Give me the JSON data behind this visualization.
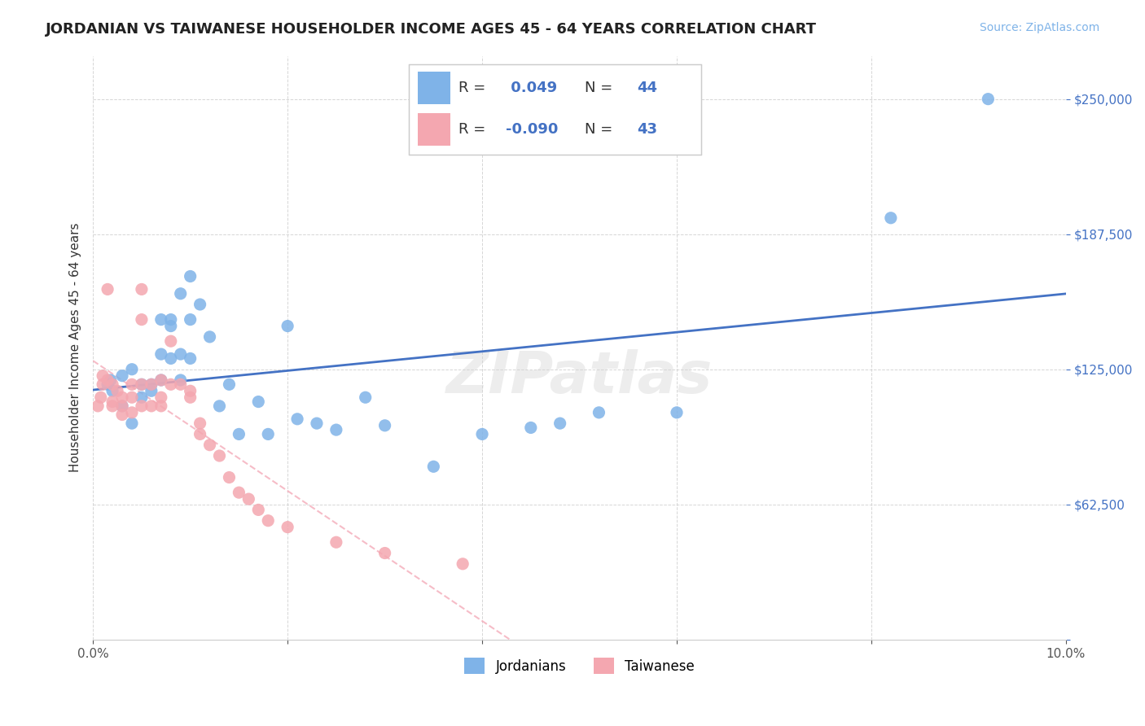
{
  "title": "JORDANIAN VS TAIWANESE HOUSEHOLDER INCOME AGES 45 - 64 YEARS CORRELATION CHART",
  "source": "Source: ZipAtlas.com",
  "ylabel": "Householder Income Ages 45 - 64 years",
  "xlim": [
    0.0,
    0.1
  ],
  "ylim": [
    0,
    270000
  ],
  "xticks": [
    0.0,
    0.02,
    0.04,
    0.06,
    0.08,
    0.1
  ],
  "xticklabels": [
    "0.0%",
    "",
    "",
    "",
    "",
    "10.0%"
  ],
  "yticks": [
    0,
    62500,
    125000,
    187500,
    250000
  ],
  "yticklabels": [
    "",
    "$62,500",
    "$125,000",
    "$187,500",
    "$250,000"
  ],
  "legend_jordanians": "Jordanians",
  "legend_taiwanese": "Taiwanese",
  "r_jordanian": 0.049,
  "n_jordanian": 44,
  "r_taiwanese": -0.09,
  "n_taiwanese": 43,
  "color_jordanian": "#7fb3e8",
  "color_taiwanese": "#f4a7b0",
  "color_line_jordanian": "#4472C4",
  "color_line_taiwanese": "#F4ACBA",
  "watermark": "ZIPatlas",
  "jordanian_x": [
    0.0015,
    0.0018,
    0.002,
    0.003,
    0.003,
    0.004,
    0.004,
    0.005,
    0.005,
    0.006,
    0.006,
    0.007,
    0.007,
    0.007,
    0.008,
    0.008,
    0.008,
    0.009,
    0.009,
    0.009,
    0.01,
    0.01,
    0.01,
    0.011,
    0.012,
    0.013,
    0.014,
    0.015,
    0.017,
    0.018,
    0.02,
    0.021,
    0.023,
    0.025,
    0.028,
    0.03,
    0.035,
    0.04,
    0.045,
    0.048,
    0.052,
    0.06,
    0.082,
    0.092
  ],
  "jordanian_y": [
    118000,
    120000,
    115000,
    122000,
    108000,
    125000,
    100000,
    118000,
    112000,
    118000,
    115000,
    148000,
    132000,
    120000,
    148000,
    145000,
    130000,
    160000,
    132000,
    120000,
    168000,
    148000,
    130000,
    155000,
    140000,
    108000,
    118000,
    95000,
    110000,
    95000,
    145000,
    102000,
    100000,
    97000,
    112000,
    99000,
    80000,
    95000,
    98000,
    100000,
    105000,
    105000,
    195000,
    250000
  ],
  "taiwanese_x": [
    0.0005,
    0.0008,
    0.001,
    0.001,
    0.0015,
    0.0015,
    0.002,
    0.002,
    0.002,
    0.0025,
    0.003,
    0.003,
    0.003,
    0.004,
    0.004,
    0.004,
    0.005,
    0.005,
    0.005,
    0.005,
    0.006,
    0.006,
    0.007,
    0.007,
    0.007,
    0.008,
    0.008,
    0.009,
    0.01,
    0.01,
    0.011,
    0.011,
    0.012,
    0.013,
    0.014,
    0.015,
    0.016,
    0.017,
    0.018,
    0.02,
    0.025,
    0.03,
    0.038
  ],
  "taiwanese_y": [
    108000,
    112000,
    118000,
    122000,
    120000,
    162000,
    110000,
    118000,
    108000,
    115000,
    112000,
    108000,
    104000,
    118000,
    112000,
    105000,
    162000,
    148000,
    118000,
    108000,
    118000,
    108000,
    120000,
    112000,
    108000,
    138000,
    118000,
    118000,
    112000,
    115000,
    100000,
    95000,
    90000,
    85000,
    75000,
    68000,
    65000,
    60000,
    55000,
    52000,
    45000,
    40000,
    35000
  ]
}
